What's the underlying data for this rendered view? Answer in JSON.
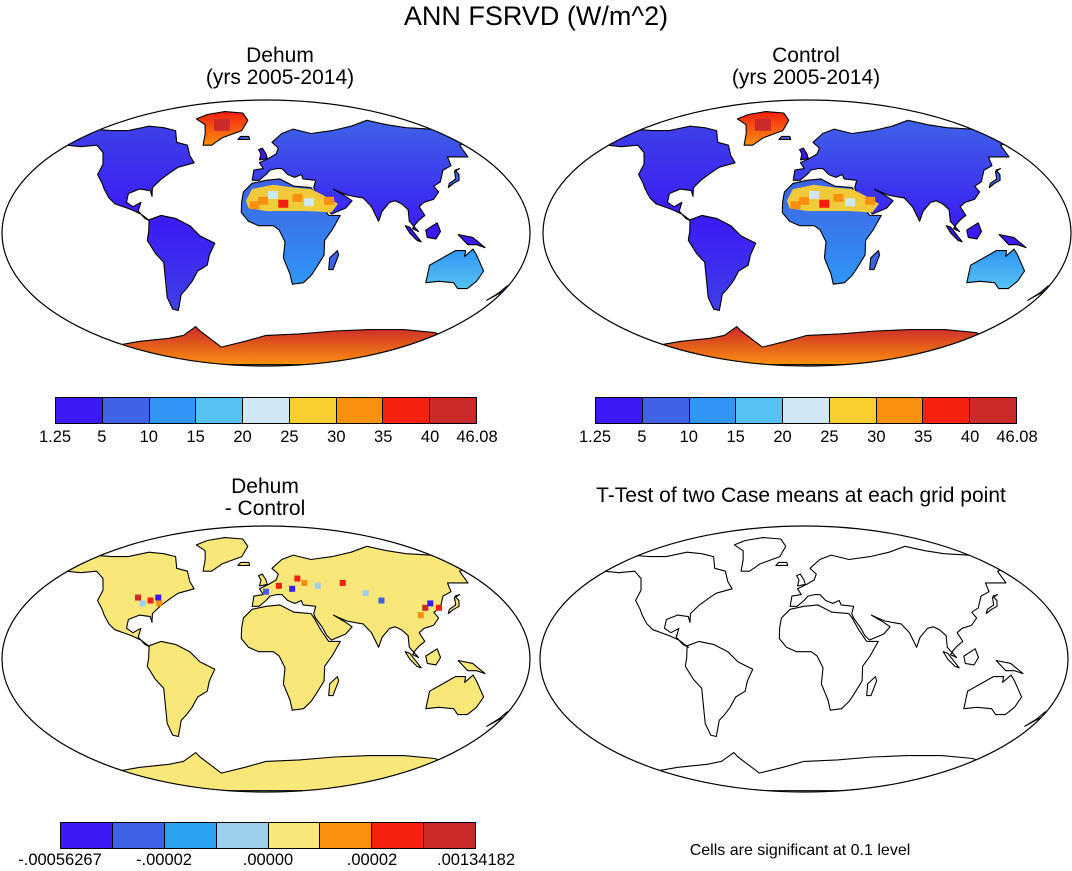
{
  "title": "ANN FSRVD (W/m^2)",
  "panels": {
    "dehum": {
      "title": "Dehum\n(yrs 2005-2014)"
    },
    "control": {
      "title": "Control\n(yrs 2005-2014)"
    },
    "diff": {
      "title": "Dehum\n- Control"
    },
    "ttest": {
      "title": "T-Test of two Case means at each grid point"
    }
  },
  "colorbar_top": {
    "colors": [
      "#3b1af5",
      "#3f62e6",
      "#2f96f5",
      "#56c2f2",
      "#cfe8f4",
      "#fad030",
      "#fa9010",
      "#f52010",
      "#cc2a2a"
    ],
    "labels": [
      "1.25",
      "5",
      "10",
      "15",
      "20",
      "25",
      "30",
      "35",
      "40",
      "46.08"
    ]
  },
  "colorbar_diff": {
    "colors": [
      "#3b1af5",
      "#3f62e6",
      "#2aa2ee",
      "#9ecfee",
      "#f9e77a",
      "#fa9010",
      "#f52010",
      "#cc2a2a"
    ],
    "labels": [
      "-.00056267",
      "-.00002",
      ".00000",
      ".00002",
      ".00134182"
    ]
  },
  "note": "Cells are significant at 0.1 level"
}
